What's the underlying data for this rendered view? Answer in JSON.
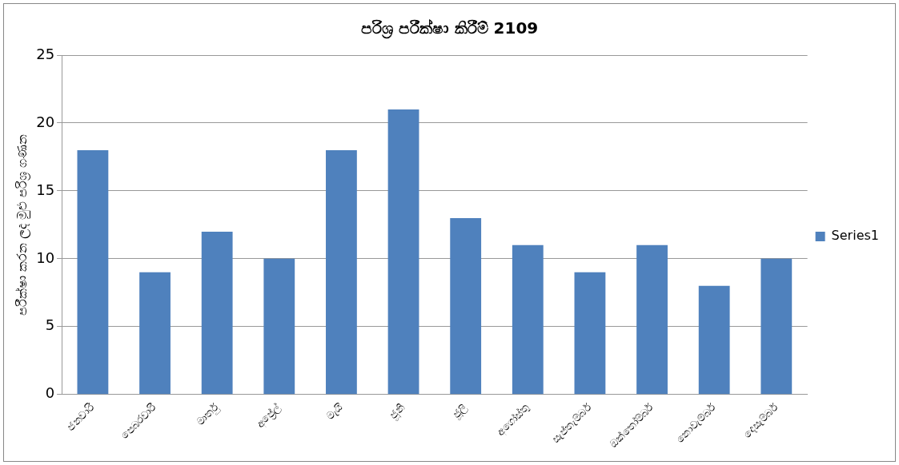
{
  "chart_data": {
    "type": "bar",
    "title": "පරිශ්‍ර පරීක්ෂා කිරීම් 2109",
    "ylabel": "පරීක්ෂා කරන ලද මුළු පරිශ්‍ර ගණන",
    "categories": [
      "ජනවාරි",
      "පෙබරවාරි",
      "මාර්තු",
      "අප්‍රේල්",
      "මැයි",
      "ජූනි",
      "ජූලි",
      "අගෝස්තු",
      "සැප්තැම්බර්",
      "ඔක්තෝම්බර්",
      "නොවැම්බර්",
      "දෙසැම්බර්"
    ],
    "series": [
      {
        "name": "Series1",
        "color": "#4f81bd",
        "values": [
          18,
          9,
          12,
          10,
          18,
          21,
          13,
          11,
          9,
          11,
          8,
          10
        ]
      }
    ],
    "ylim": [
      0,
      25
    ],
    "yticks": [
      0,
      5,
      10,
      15,
      20,
      25
    ],
    "grid": "y",
    "legend": "right"
  }
}
